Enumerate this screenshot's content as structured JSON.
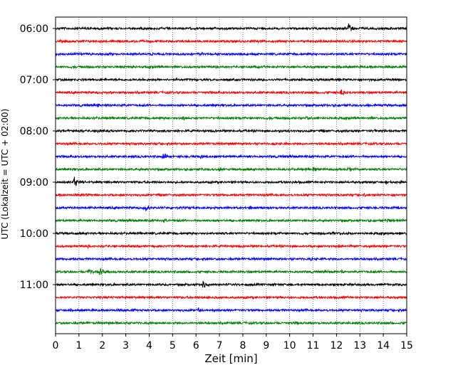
{
  "chart_data": {
    "type": "line",
    "title": "",
    "xlabel": "Zeit  [min]",
    "ylabel": "UTC (Lokalzeit = UTC + 02:00)",
    "xlim": [
      0,
      15
    ],
    "x_ticks": [
      "0",
      "1",
      "2",
      "3",
      "4",
      "5",
      "6",
      "7",
      "8",
      "9",
      "10",
      "11",
      "12",
      "13",
      "14",
      "15"
    ],
    "y_ticks": [
      "06:00",
      "07:00",
      "08:00",
      "09:00",
      "10:00",
      "11:00"
    ],
    "grid": "vertical dotted",
    "trace_interval_min": 15,
    "trace_colors": [
      "#000000",
      "#ff0000",
      "#0000ff",
      "#008000"
    ],
    "series": [
      {
        "start": "06:00",
        "color": "#000000",
        "events": [
          {
            "t": 12.5,
            "amp": 1.0
          },
          {
            "t": 0.9,
            "amp": 0.2
          }
        ]
      },
      {
        "start": "06:15",
        "color": "#ff0000",
        "events": [
          {
            "t": 11.0,
            "amp": 0.15
          }
        ]
      },
      {
        "start": "06:30",
        "color": "#0000ff",
        "events": [
          {
            "t": 4.1,
            "amp": 0.3
          },
          {
            "t": 6.2,
            "amp": 0.2
          }
        ]
      },
      {
        "start": "06:45",
        "color": "#008000",
        "events": [
          {
            "t": 3.1,
            "amp": 0.2
          },
          {
            "t": 6.9,
            "amp": 0.2
          },
          {
            "t": 8.3,
            "amp": 0.15
          }
        ]
      },
      {
        "start": "07:00",
        "color": "#000000",
        "events": [
          {
            "t": 0.7,
            "amp": 0.15
          },
          {
            "t": 14.4,
            "amp": 0.2
          }
        ]
      },
      {
        "start": "07:15",
        "color": "#ff0000",
        "events": [
          {
            "t": 12.2,
            "amp": 0.55
          },
          {
            "t": 2.4,
            "amp": 0.15
          }
        ]
      },
      {
        "start": "07:30",
        "color": "#0000ff",
        "events": [
          {
            "t": 1.8,
            "amp": 0.35
          }
        ]
      },
      {
        "start": "07:45",
        "color": "#008000",
        "events": [
          {
            "t": 5.4,
            "amp": 0.3
          },
          {
            "t": 10.7,
            "amp": 0.2
          }
        ]
      },
      {
        "start": "08:00",
        "color": "#000000",
        "events": [
          {
            "t": 1.8,
            "amp": 0.25
          },
          {
            "t": 9.6,
            "amp": 0.2
          },
          {
            "t": 13.6,
            "amp": 0.15
          }
        ]
      },
      {
        "start": "08:15",
        "color": "#ff0000",
        "events": [
          {
            "t": 9.3,
            "amp": 0.15
          }
        ]
      },
      {
        "start": "08:30",
        "color": "#0000ff",
        "events": [
          {
            "t": 4.6,
            "amp": 0.55
          },
          {
            "t": 6.2,
            "amp": 0.4
          }
        ]
      },
      {
        "start": "08:45",
        "color": "#008000",
        "events": [
          {
            "t": 7.0,
            "amp": 0.35
          },
          {
            "t": 11.0,
            "amp": 0.3
          },
          {
            "t": 12.5,
            "amp": 0.35
          }
        ]
      },
      {
        "start": "09:00",
        "color": "#000000",
        "events": [
          {
            "t": 0.8,
            "amp": 0.9
          },
          {
            "t": 14.1,
            "amp": 0.3
          }
        ]
      },
      {
        "start": "09:15",
        "color": "#ff0000",
        "events": [
          {
            "t": 1.1,
            "amp": 0.25
          },
          {
            "t": 13.2,
            "amp": 0.2
          }
        ]
      },
      {
        "start": "09:30",
        "color": "#0000ff",
        "events": [
          {
            "t": 3.8,
            "amp": 0.55
          },
          {
            "t": 8.3,
            "amp": 0.25
          },
          {
            "t": 14.6,
            "amp": 0.2
          }
        ]
      },
      {
        "start": "09:45",
        "color": "#008000",
        "events": [
          {
            "t": 4.6,
            "amp": 0.3
          },
          {
            "t": 14.2,
            "amp": 0.35
          }
        ]
      },
      {
        "start": "10:00",
        "color": "#000000",
        "events": [
          {
            "t": 11.8,
            "amp": 0.2
          },
          {
            "t": 14.1,
            "amp": 0.15
          }
        ]
      },
      {
        "start": "10:15",
        "color": "#ff0000",
        "events": [
          {
            "t": 12.1,
            "amp": 0.2
          },
          {
            "t": 1.4,
            "amp": 0.15
          }
        ]
      },
      {
        "start": "10:30",
        "color": "#0000ff",
        "events": [
          {
            "t": 10.9,
            "amp": 0.25
          }
        ]
      },
      {
        "start": "10:45",
        "color": "#008000",
        "events": [
          {
            "t": 1.4,
            "amp": 0.6
          },
          {
            "t": 1.9,
            "amp": 0.7
          },
          {
            "t": 12.2,
            "amp": 0.2
          }
        ]
      },
      {
        "start": "11:00",
        "color": "#000000",
        "events": [
          {
            "t": 6.3,
            "amp": 0.55
          },
          {
            "t": 4.5,
            "amp": 0.2
          }
        ]
      },
      {
        "start": "11:15",
        "color": "#ff0000",
        "events": [
          {
            "t": 6.5,
            "amp": 0.15
          }
        ]
      },
      {
        "start": "11:30",
        "color": "#0000ff",
        "events": [
          {
            "t": 6.1,
            "amp": 0.35
          },
          {
            "t": 3.3,
            "amp": 0.15
          }
        ]
      },
      {
        "start": "11:45",
        "color": "#008000",
        "events": [
          {
            "t": 2.5,
            "amp": 0.2
          },
          {
            "t": 10.3,
            "amp": 0.2
          }
        ]
      }
    ]
  }
}
